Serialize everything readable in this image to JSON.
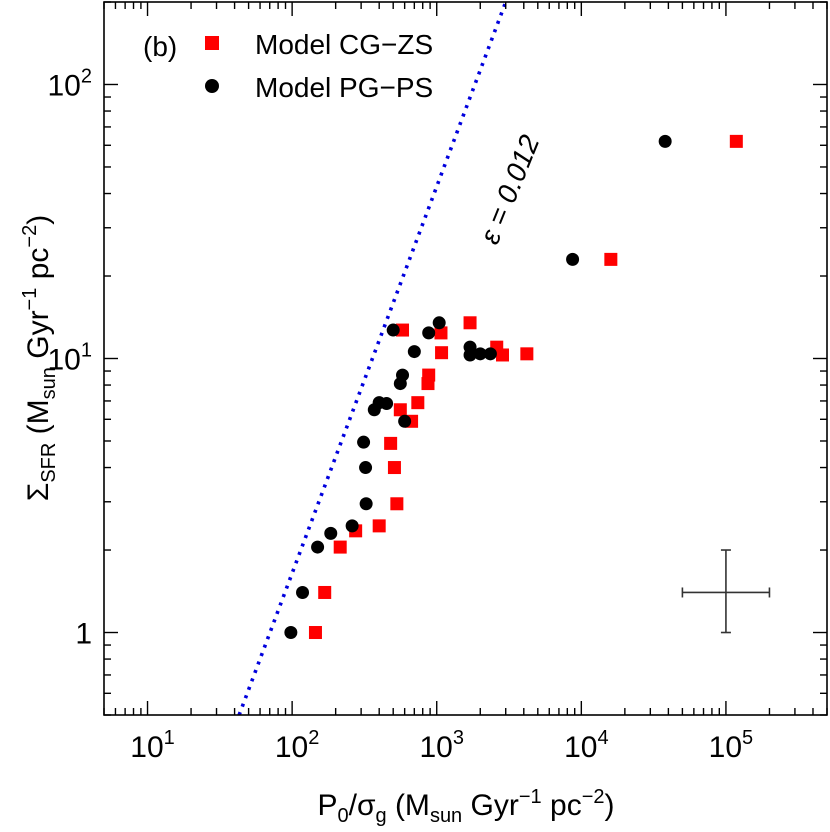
{
  "chart_data": {
    "type": "scatter",
    "panel_label": "(b)",
    "x_scale": "log",
    "y_scale": "log",
    "xlim": [
      5,
      500000
    ],
    "ylim": [
      0.5,
      200
    ],
    "grid": false,
    "legend_position": "top-left",
    "xlabel": {
      "base": "P",
      "sub0": "0",
      "slash": "/σ",
      "sub1": "g",
      "open": " (M",
      "sub2": "sun",
      "mid": " Gyr",
      "sup": "−1",
      "tail": " pc",
      "sup2": "−2",
      "close": ")"
    },
    "ylabel": {
      "sigma": "Σ",
      "sub0": "SFR",
      "open": " (M",
      "sub1": "sun",
      "mid": " Gyr",
      "sup": "−1",
      "tail": " pc",
      "sup2": "−2",
      "close": ")"
    },
    "x_ticks": [
      {
        "value": 10,
        "base": "10",
        "exp": "1"
      },
      {
        "value": 100,
        "base": "10",
        "exp": "2"
      },
      {
        "value": 1000,
        "base": "10",
        "exp": "3"
      },
      {
        "value": 10000,
        "base": "10",
        "exp": "4"
      },
      {
        "value": 100000,
        "base": "10",
        "exp": "5"
      }
    ],
    "y_ticks": [
      {
        "value": 1,
        "base": "1",
        "exp": ""
      },
      {
        "value": 10,
        "base": "10",
        "exp": "1"
      },
      {
        "value": 100,
        "base": "10",
        "exp": "2"
      }
    ],
    "series": [
      {
        "name": "Model CG−ZS",
        "marker": "square",
        "color": "#ff0000",
        "points": [
          {
            "x": 145,
            "y": 1.0
          },
          {
            "x": 168,
            "y": 1.4
          },
          {
            "x": 215,
            "y": 2.05
          },
          {
            "x": 275,
            "y": 2.35
          },
          {
            "x": 400,
            "y": 2.45
          },
          {
            "x": 530,
            "y": 2.95
          },
          {
            "x": 510,
            "y": 4.0
          },
          {
            "x": 480,
            "y": 4.9
          },
          {
            "x": 670,
            "y": 5.9
          },
          {
            "x": 560,
            "y": 6.5
          },
          {
            "x": 740,
            "y": 6.9
          },
          {
            "x": 870,
            "y": 8.1
          },
          {
            "x": 880,
            "y": 8.7
          },
          {
            "x": 1080,
            "y": 10.5
          },
          {
            "x": 1070,
            "y": 12.4
          },
          {
            "x": 580,
            "y": 12.7
          },
          {
            "x": 1700,
            "y": 13.5
          },
          {
            "x": 2600,
            "y": 11.0
          },
          {
            "x": 2850,
            "y": 10.3
          },
          {
            "x": 4200,
            "y": 10.4
          },
          {
            "x": 16000,
            "y": 23.0
          },
          {
            "x": 118000,
            "y": 62.0
          }
        ]
      },
      {
        "name": "Model PG−PS",
        "marker": "circle",
        "color": "#000000",
        "points": [
          {
            "x": 98,
            "y": 1.0
          },
          {
            "x": 118,
            "y": 1.4
          },
          {
            "x": 150,
            "y": 2.05
          },
          {
            "x": 185,
            "y": 2.3
          },
          {
            "x": 260,
            "y": 2.45
          },
          {
            "x": 325,
            "y": 2.95
          },
          {
            "x": 322,
            "y": 4.0
          },
          {
            "x": 312,
            "y": 4.95
          },
          {
            "x": 600,
            "y": 5.9
          },
          {
            "x": 370,
            "y": 6.5
          },
          {
            "x": 400,
            "y": 6.9
          },
          {
            "x": 450,
            "y": 6.85
          },
          {
            "x": 560,
            "y": 8.1
          },
          {
            "x": 580,
            "y": 8.7
          },
          {
            "x": 700,
            "y": 10.6
          },
          {
            "x": 880,
            "y": 12.4
          },
          {
            "x": 500,
            "y": 12.7
          },
          {
            "x": 1040,
            "y": 13.5
          },
          {
            "x": 1700,
            "y": 11.0
          },
          {
            "x": 1700,
            "y": 10.3
          },
          {
            "x": 2000,
            "y": 10.4
          },
          {
            "x": 2350,
            "y": 10.4
          },
          {
            "x": 8700,
            "y": 23.0
          },
          {
            "x": 38000,
            "y": 62.0
          }
        ]
      }
    ],
    "fit_line": {
      "label_prefix": "ε",
      "label_value": " = 0.012",
      "color": "#0000dd",
      "points": [
        {
          "x": 43,
          "y": 0.5
        },
        {
          "x": 3000,
          "y": 200
        }
      ]
    },
    "error_bar": {
      "x": 100000,
      "y": 1.4,
      "x_range": [
        50000,
        200000
      ],
      "y_range": [
        1.0,
        2.0
      ]
    }
  }
}
